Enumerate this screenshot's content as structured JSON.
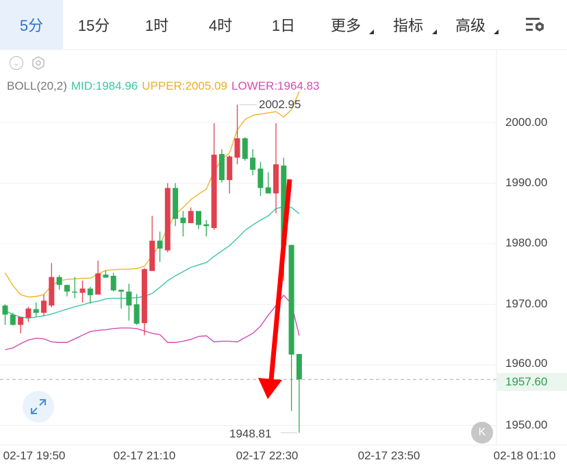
{
  "tabs": [
    {
      "label": "5分",
      "active": true
    },
    {
      "label": "15分"
    },
    {
      "label": "1时"
    },
    {
      "label": "4时"
    },
    {
      "label": "1日"
    },
    {
      "label": "更多",
      "dropdown": true
    },
    {
      "label": "指标",
      "dropdown": true
    },
    {
      "label": "高级",
      "dropdown": true
    }
  ],
  "icons": {
    "settings": "chart-settings-icon",
    "collapse": "chevron-down-circle-icon",
    "gear": "hexagon-gear-icon",
    "expand": "expand-arrows-icon",
    "k": "k-line-icon"
  },
  "k_label": "K",
  "legend": {
    "name": "BOLL(20,2)",
    "mid": "MID:1984.96",
    "upper": "UPPER:2005.09",
    "lower": "LOWER:1964.83"
  },
  "colors": {
    "up": "#e0414f",
    "down": "#2eaa55",
    "mid": "#3cc6a5",
    "upper": "#f0b429",
    "lower": "#d64bb5",
    "accent": "#2f6fd0",
    "annotation_arrow": "#ff0000"
  },
  "chart_data": {
    "type": "candlestick",
    "yticks": [
      "2000.00",
      "1990.00",
      "1980.00",
      "1970.00",
      "1960.00",
      "1950.00"
    ],
    "ylim": [
      1946,
      2012
    ],
    "xticks": [
      "02-17 19:50",
      "02-17 21:10",
      "02-17 22:30",
      "02-17 23:50",
      "02-18 01:10"
    ],
    "interval_minutes": 5,
    "grid": true,
    "current_price": "1957.60",
    "high_label": "2002.95",
    "low_label": "1948.81",
    "candles_ohlc": [
      [
        1969.8,
        1970.0,
        1966.6,
        1968.3
      ],
      [
        1968.3,
        1968.6,
        1966.5,
        1966.6
      ],
      [
        1966.6,
        1967.9,
        1965.2,
        1967.9
      ],
      [
        1967.8,
        1969.6,
        1967.1,
        1969.3
      ],
      [
        1969.2,
        1970.3,
        1967.9,
        1968.6
      ],
      [
        1968.6,
        1971.6,
        1968.1,
        1970.6
      ],
      [
        1969.8,
        1976.8,
        1969.5,
        1974.5
      ],
      [
        1974.5,
        1974.8,
        1972.4,
        1973.2
      ],
      [
        1973.2,
        1973.2,
        1971.3,
        1972.1
      ],
      [
        1972.1,
        1974.5,
        1971.0,
        1972.0
      ],
      [
        1971.9,
        1973.9,
        1970.3,
        1972.6
      ],
      [
        1972.6,
        1972.9,
        1970.1,
        1971.5
      ],
      [
        1971.6,
        1977.2,
        1971.6,
        1975.1
      ],
      [
        1974.9,
        1975.6,
        1974.4,
        1974.4
      ],
      [
        1974.7,
        1975.2,
        1972.1,
        1972.3
      ],
      [
        1972.4,
        1972.4,
        1969.3,
        1972.1
      ],
      [
        1972.1,
        1973.4,
        1967.3,
        1969.8
      ],
      [
        1970.0,
        1971.7,
        1966.6,
        1966.8
      ],
      [
        1966.9,
        1976.0,
        1964.9,
        1975.8
      ],
      [
        1975.5,
        1984.6,
        1975.5,
        1980.5
      ],
      [
        1980.5,
        1982.0,
        1977.0,
        1979.2
      ],
      [
        1978.9,
        1990.0,
        1978.6,
        1989.2
      ],
      [
        1989.2,
        1990.0,
        1982.9,
        1984.1
      ],
      [
        1984.3,
        1985.4,
        1981.2,
        1983.4
      ],
      [
        1983.4,
        1986.0,
        1983.4,
        1985.4
      ],
      [
        1985.4,
        1985.4,
        1982.4,
        1983.1
      ],
      [
        1983.2,
        1983.9,
        1981.2,
        1982.9
      ],
      [
        1982.6,
        1999.9,
        1982.3,
        1994.7
      ],
      [
        1994.8,
        1995.6,
        1990.1,
        1990.5
      ],
      [
        1990.5,
        1994.6,
        1988.3,
        1994.4
      ],
      [
        1994.2,
        2002.95,
        1993.1,
        1997.4
      ],
      [
        1997.4,
        1997.6,
        1993.7,
        1994.0
      ],
      [
        1994.2,
        1995.6,
        1991.3,
        1992.2
      ],
      [
        1992.4,
        1993.5,
        1987.9,
        1989.2
      ],
      [
        1989.3,
        1991.8,
        1988.3,
        1988.3
      ],
      [
        1988.3,
        1999.9,
        1985.0,
        1993.1
      ],
      [
        1992.9,
        1994.2,
        1973.9,
        1979.7
      ],
      [
        1979.8,
        1979.8,
        1952.4,
        1961.7
      ],
      [
        1961.8,
        1961.8,
        1948.81,
        1957.6
      ]
    ],
    "series": [
      {
        "name": "UPPER",
        "values": [
          1975.2,
          1973.1,
          1971.6,
          1971.2,
          1971.3,
          1971.6,
          1973.1,
          1973.9,
          1974.1,
          1974.2,
          1974.3,
          1974.3,
          1975.0,
          1975.6,
          1975.7,
          1975.8,
          1975.8,
          1975.9,
          1976.3,
          1978.0,
          1979.9,
          1982.6,
          1984.8,
          1986.0,
          1987.3,
          1988.2,
          1989.0,
          1992.0,
          1993.9,
          1995.0,
          1998.8,
          2000.5,
          2001.2,
          2001.4,
          2001.6,
          2001.8,
          2000.9,
          2002.1,
          2005.09
        ]
      },
      {
        "name": "MID",
        "values": [
          1969.0,
          1968.3,
          1967.9,
          1967.7,
          1967.9,
          1968.1,
          1968.4,
          1968.8,
          1969.2,
          1969.6,
          1969.9,
          1970.3,
          1970.5,
          1970.9,
          1971.0,
          1971.0,
          1971.0,
          1971.1,
          1971.3,
          1971.8,
          1972.8,
          1973.9,
          1974.7,
          1975.4,
          1976.1,
          1976.5,
          1976.9,
          1977.9,
          1978.8,
          1979.7,
          1980.9,
          1982.2,
          1983.1,
          1983.9,
          1984.6,
          1985.8,
          1986.1,
          1986.0,
          1984.96
        ]
      },
      {
        "name": "LOWER",
        "values": [
          1962.5,
          1962.8,
          1963.5,
          1964.1,
          1964.4,
          1964.3,
          1963.8,
          1963.7,
          1963.7,
          1964.3,
          1964.9,
          1965.5,
          1965.7,
          1965.8,
          1966.0,
          1966.1,
          1966.1,
          1966.0,
          1965.6,
          1965.2,
          1965.0,
          1963.7,
          1963.7,
          1963.9,
          1964.2,
          1964.7,
          1964.8,
          1963.8,
          1963.9,
          1963.9,
          1963.8,
          1964.5,
          1965.2,
          1966.4,
          1968.2,
          1969.8,
          1971.5,
          1970.1,
          1964.83
        ]
      }
    ]
  }
}
